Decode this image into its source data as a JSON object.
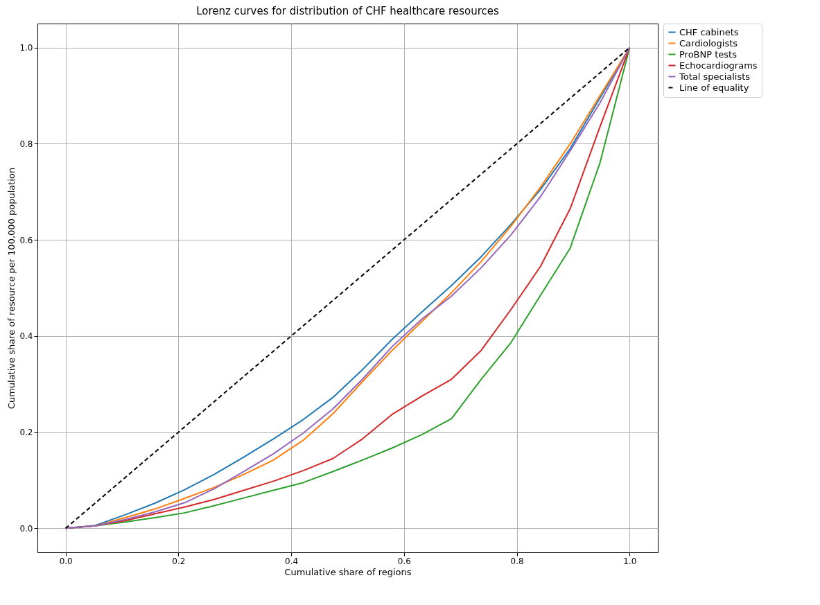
{
  "chart_data": {
    "type": "line",
    "title": "Lorenz curves for distribution of CHF healthcare resources",
    "xlabel": "Cumulative share of regions",
    "ylabel": "Cumulative share of resource per 100,000 population",
    "x": [
      0,
      0.0526,
      0.1053,
      0.1579,
      0.2105,
      0.2632,
      0.3158,
      0.3684,
      0.4211,
      0.4737,
      0.5263,
      0.5789,
      0.6316,
      0.6842,
      0.7368,
      0.7895,
      0.8421,
      0.8947,
      0.9474,
      1
    ],
    "series": [
      {
        "name": "CHF cabinets",
        "color": "#1f77b4",
        "values": [
          0,
          0.006,
          0.028,
          0.052,
          0.08,
          0.112,
          0.148,
          0.186,
          0.226,
          0.272,
          0.33,
          0.393,
          0.45,
          0.505,
          0.565,
          0.632,
          0.705,
          0.79,
          0.895,
          1
        ]
      },
      {
        "name": "Cardiologists",
        "color": "#ff7f0e",
        "values": [
          0,
          0.005,
          0.022,
          0.04,
          0.062,
          0.085,
          0.112,
          0.142,
          0.183,
          0.238,
          0.305,
          0.37,
          0.43,
          0.49,
          0.555,
          0.628,
          0.71,
          0.8,
          0.9,
          1
        ]
      },
      {
        "name": "ProBNP tests",
        "color": "#2ca02c",
        "values": [
          0,
          0.005,
          0.013,
          0.022,
          0.032,
          0.047,
          0.063,
          0.079,
          0.095,
          0.118,
          0.142,
          0.167,
          0.195,
          0.228,
          0.31,
          0.386,
          0.485,
          0.583,
          0.76,
          1
        ]
      },
      {
        "name": "Echocardiograms",
        "color": "#d62728",
        "values": [
          0,
          0.005,
          0.016,
          0.03,
          0.044,
          0.06,
          0.079,
          0.098,
          0.12,
          0.145,
          0.186,
          0.237,
          0.275,
          0.31,
          0.37,
          0.455,
          0.545,
          0.665,
          0.835,
          1
        ]
      },
      {
        "name": "Total specialists",
        "color": "#9467bd",
        "values": [
          0,
          0.005,
          0.018,
          0.034,
          0.053,
          0.082,
          0.118,
          0.155,
          0.198,
          0.248,
          0.31,
          0.378,
          0.435,
          0.483,
          0.542,
          0.61,
          0.69,
          0.785,
          0.885,
          1
        ]
      },
      {
        "name": "Line of equality",
        "color": "#000000",
        "line_style": "dashed",
        "x": [
          0,
          1
        ],
        "values": [
          0,
          1
        ]
      }
    ],
    "xlim": [
      -0.05,
      1.05
    ],
    "ylim": [
      -0.05,
      1.05
    ],
    "xticks": [
      {
        "value": 0,
        "label": "0.0"
      },
      0.2,
      0.4,
      0.6,
      0.8,
      {
        "value": 1,
        "label": "1.0"
      }
    ],
    "yticks": [
      {
        "value": 0,
        "label": "0.0"
      },
      0.2,
      0.4,
      0.6,
      0.8,
      {
        "value": 1,
        "label": "1.0"
      }
    ],
    "grid": true,
    "legend": "top right",
    "line_style": "solid"
  }
}
